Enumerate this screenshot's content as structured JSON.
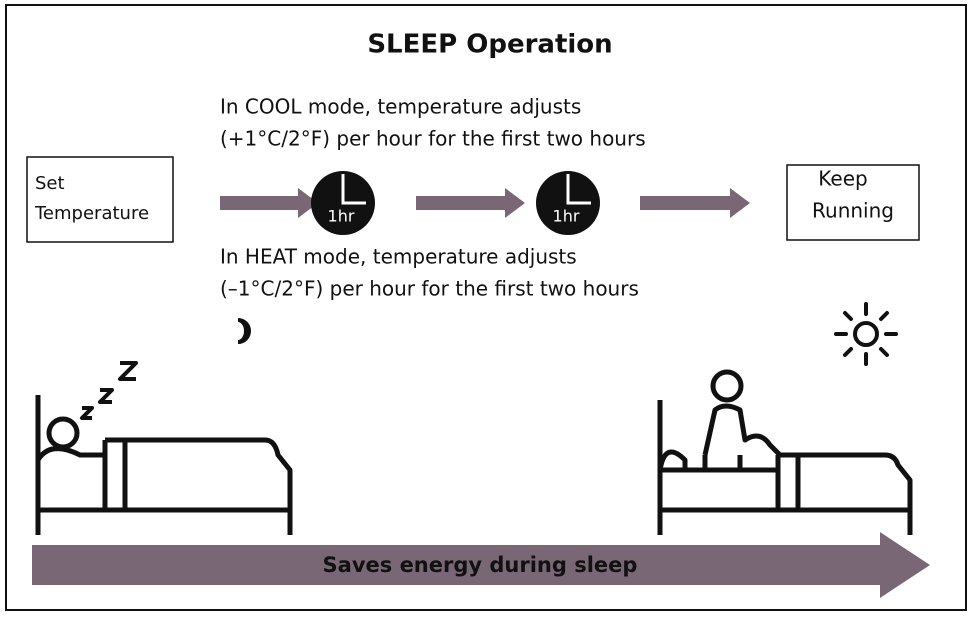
{
  "title": "SLEEP Operation",
  "cool_note": [
    "In COOL mode, temperature adjusts",
    "(+1°C/2°F) per hour for the first two hours"
  ],
  "heat_note": [
    "In HEAT mode, temperature adjusts",
    "(–1°C/2°F) per hour for the first two hours"
  ],
  "nodes": [
    {
      "label": [
        "Set",
        "Temperature"
      ]
    },
    {
      "label": "1hr"
    },
    {
      "label": "1hr"
    },
    {
      "label": [
        "Keep",
        "Running"
      ]
    }
  ],
  "banner": "Saves energy during sleep"
}
